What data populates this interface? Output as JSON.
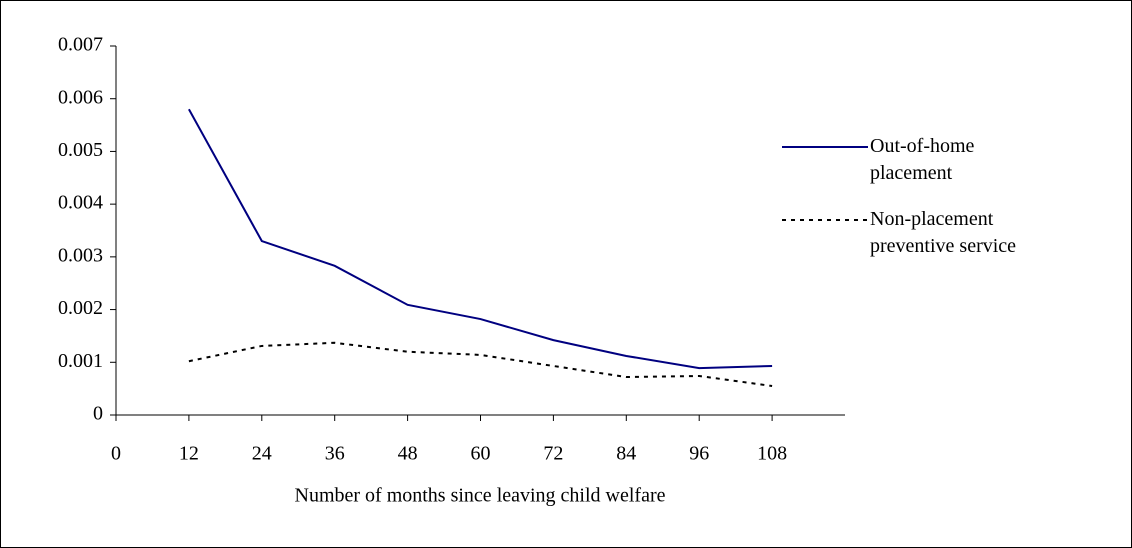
{
  "chart_data": {
    "type": "line",
    "x": [
      12,
      24,
      36,
      48,
      60,
      72,
      84,
      96,
      108
    ],
    "series": [
      {
        "name": "Out-of-home placement",
        "color": "#000080",
        "dash": "solid",
        "values": [
          0.0058,
          0.0033,
          0.00283,
          0.00209,
          0.00182,
          0.00142,
          0.00112,
          0.00089,
          0.00093
        ]
      },
      {
        "name": "Non-placement preventive service",
        "color": "#000000",
        "dash": "dashed",
        "values": [
          0.00102,
          0.00131,
          0.00137,
          0.0012,
          0.00114,
          0.00093,
          0.00072,
          0.00074,
          0.00055
        ]
      }
    ],
    "x_label": "Number of months since leaving child welfare",
    "xlim": [
      0,
      120
    ],
    "xticks": [
      0,
      12,
      24,
      36,
      48,
      60,
      72,
      84,
      96,
      108
    ],
    "ylim": [
      0,
      0.007
    ],
    "yticks": [
      0,
      0.001,
      0.002,
      0.003,
      0.004,
      0.005,
      0.006,
      0.007
    ],
    "grid": false,
    "legend": "right"
  }
}
